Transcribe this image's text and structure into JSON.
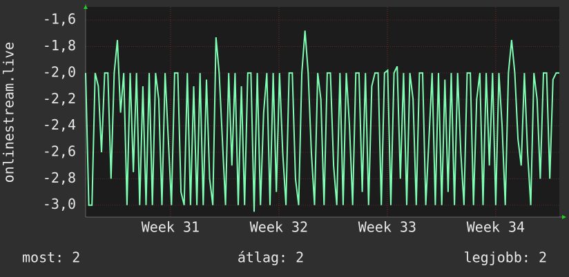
{
  "chart_data": {
    "type": "line",
    "y_label": "onlinestream.live",
    "series": [
      {
        "name": "onlinestream.live",
        "color": "#7fffb4",
        "values": [
          -2.0,
          -3.0,
          -3.0,
          -2.0,
          -2.1,
          -2.6,
          -2.0,
          -2.0,
          -2.8,
          -2.0,
          -1.75,
          -2.3,
          -2.0,
          -3.0,
          -2.0,
          -2.75,
          -2.0,
          -3.0,
          -2.1,
          -3.0,
          -2.0,
          -3.0,
          -2.0,
          -2.2,
          -3.0,
          -2.0,
          -2.5,
          -3.0,
          -2.0,
          -2.0,
          -2.9,
          -3.0,
          -2.0,
          -3.0,
          -2.1,
          -3.0,
          -2.0,
          -3.0,
          -2.05,
          -2.8,
          -3.0,
          -1.73,
          -2.0,
          -2.5,
          -3.0,
          -2.0,
          -2.7,
          -2.0,
          -3.0,
          -2.1,
          -3.0,
          -2.0,
          -2.0,
          -3.05,
          -2.0,
          -3.0,
          -2.3,
          -2.0,
          -3.0,
          -2.0,
          -2.9,
          -2.0,
          -2.6,
          -3.0,
          -2.0,
          -2.0,
          -2.8,
          -3.0,
          -2.0,
          -1.68,
          -2.0,
          -2.6,
          -3.0,
          -2.0,
          -2.2,
          -3.0,
          -2.0,
          -2.0,
          -2.7,
          -3.0,
          -2.0,
          -3.0,
          -2.0,
          -2.4,
          -3.0,
          -2.0,
          -2.0,
          -2.9,
          -2.0,
          -3.0,
          -2.1,
          -2.0,
          -2.0,
          -3.0,
          -2.0,
          -1.98,
          -3.0,
          -2.0,
          -1.95,
          -2.8,
          -2.0,
          -3.0,
          -2.0,
          -2.2,
          -3.0,
          -2.0,
          -2.0,
          -3.0,
          -2.5,
          -2.0,
          -3.0,
          -2.0,
          -3.0,
          -2.05,
          -2.9,
          -2.0,
          -3.0,
          -2.0,
          -2.6,
          -3.0,
          -2.0,
          -2.0,
          -3.0,
          -2.2,
          -2.0,
          -3.0,
          -2.0,
          -2.7,
          -2.0,
          -3.0,
          -2.0,
          -2.4,
          -3.0,
          -2.0,
          -1.75,
          -2.0,
          -2.5,
          -2.7,
          -2.0,
          -2.6,
          -3.0,
          -2.0,
          -2.2,
          -2.8,
          -2.0,
          -2.0,
          -2.8,
          -2.05,
          -2.0,
          -2.0
        ]
      }
    ],
    "xlim": [
      0,
      149
    ],
    "xticks": [
      {
        "value": 26.7,
        "label": "Week 31"
      },
      {
        "value": 60.8,
        "label": "Week 32"
      },
      {
        "value": 94.9,
        "label": "Week 33"
      },
      {
        "value": 129.0,
        "label": "Week 34"
      }
    ],
    "ylim": [
      -3.09,
      -1.5
    ],
    "yticks": [
      {
        "value": -1.6,
        "label": "-1,6"
      },
      {
        "value": -1.8,
        "label": "-1,8"
      },
      {
        "value": -2.0,
        "label": "-2,0"
      },
      {
        "value": -2.2,
        "label": "-2,2"
      },
      {
        "value": -2.4,
        "label": "-2,4"
      },
      {
        "value": -2.6,
        "label": "-2,6"
      },
      {
        "value": -2.8,
        "label": "-2,8"
      },
      {
        "value": -3.0,
        "label": "-3,0"
      }
    ],
    "grid": true,
    "stats": [
      "most: 2",
      "átlag: 2",
      "legjobb: 2"
    ]
  }
}
